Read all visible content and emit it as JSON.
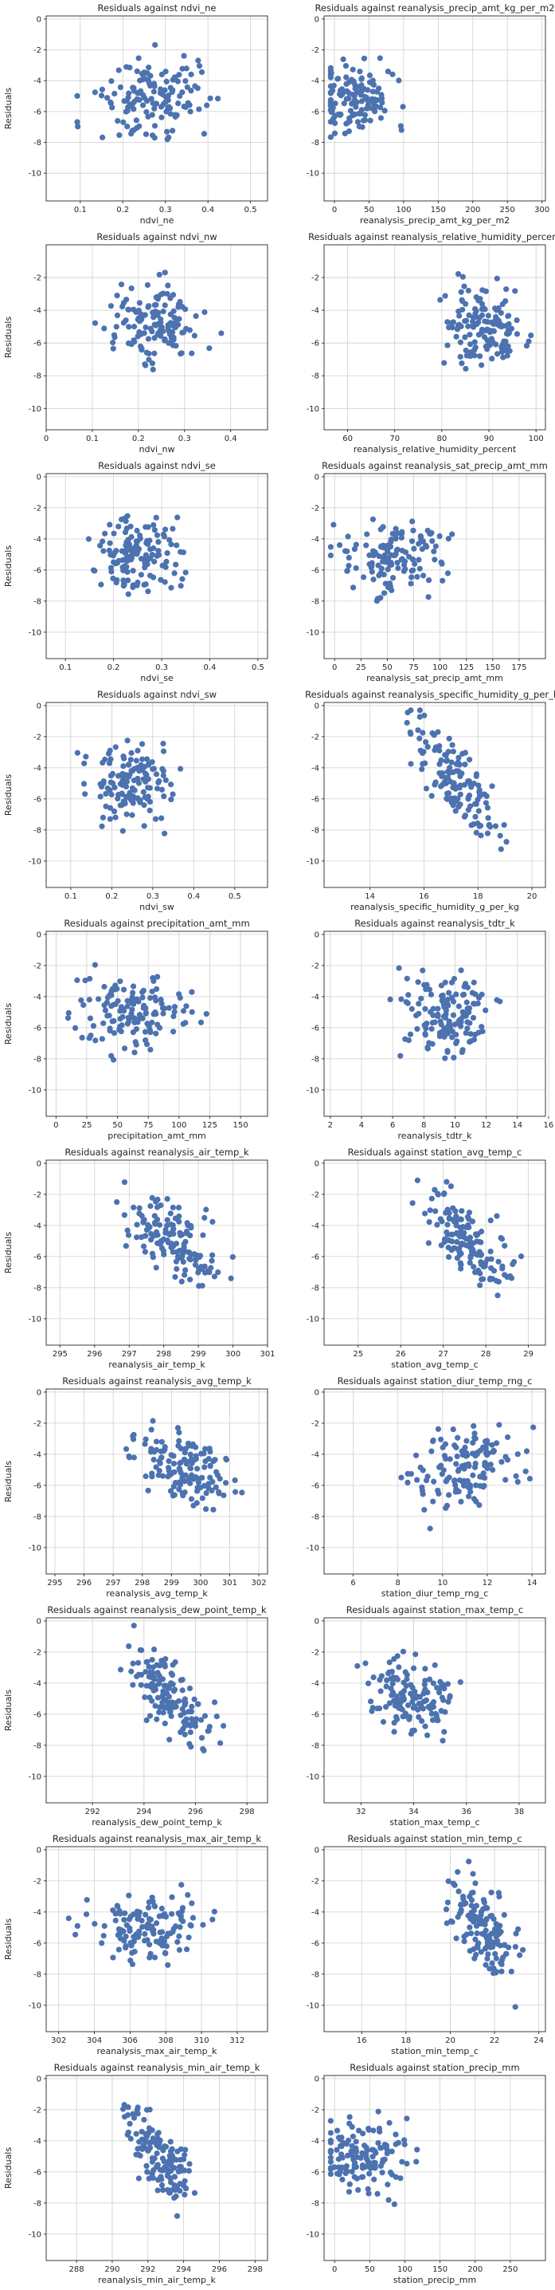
{
  "chart_data": [
    {
      "type": "scatter",
      "title": "Residuals against ndvi_ne",
      "xlabel": "ndvi_ne",
      "ylabel": "Residuals",
      "xlim": [
        0.02,
        0.54
      ],
      "ylim": [
        -11.8,
        0.2
      ],
      "xticks": [
        0.1,
        0.2,
        0.3,
        0.4,
        0.5
      ],
      "yticks": [
        -10,
        -8,
        -6,
        -4,
        -2,
        0
      ],
      "x_center": 0.26,
      "x_spread": 0.1,
      "trend": 0,
      "seed": 1
    },
    {
      "type": "scatter",
      "title": "Residuals against reanalysis_precip_amt_kg_per_m2",
      "xlabel": "reanalysis_precip_amt_kg_per_m2",
      "ylabel": "",
      "xlim": [
        -15,
        305
      ],
      "ylim": [
        -11.8,
        0.2
      ],
      "xticks": [
        0,
        50,
        100,
        150,
        200,
        250,
        300
      ],
      "yticks": [
        -10,
        -8,
        -6,
        -4,
        -2,
        0
      ],
      "x_center": 30,
      "x_spread": 45,
      "trend": 0.02,
      "seed": 2
    },
    {
      "type": "scatter",
      "title": "Residuals against ndvi_nw",
      "xlabel": "ndvi_nw",
      "ylabel": "Residuals",
      "xlim": [
        0.0,
        0.48
      ],
      "ylim": [
        -11.3,
        0.0
      ],
      "xticks": [
        0.0,
        0.1,
        0.2,
        0.3,
        0.4
      ],
      "yticks": [
        -10,
        -8,
        -6,
        -4,
        -2
      ],
      "x_center": 0.23,
      "x_spread": 0.08,
      "trend": 0,
      "seed": 3
    },
    {
      "type": "scatter",
      "title": "Residuals against reanalysis_relative_humidity_percent",
      "xlabel": "reanalysis_relative_humidity_percent",
      "ylabel": "",
      "xlim": [
        55,
        102
      ],
      "ylim": [
        -11.3,
        0.0
      ],
      "xticks": [
        60,
        70,
        80,
        90,
        100
      ],
      "yticks": [
        -10,
        -8,
        -6,
        -4,
        -2
      ],
      "x_center": 89,
      "x_spread": 6,
      "trend": -0.15,
      "seed": 4
    },
    {
      "type": "scatter",
      "title": "Residuals against ndvi_se",
      "xlabel": "ndvi_se",
      "ylabel": "Residuals",
      "xlim": [
        0.06,
        0.52
      ],
      "ylim": [
        -11.7,
        0.2
      ],
      "xticks": [
        0.1,
        0.2,
        0.3,
        0.4,
        0.5
      ],
      "yticks": [
        -10,
        -8,
        -6,
        -4,
        -2,
        0
      ],
      "x_center": 0.25,
      "x_spread": 0.07,
      "trend": 0,
      "seed": 5
    },
    {
      "type": "scatter",
      "title": "Residuals against reanalysis_sat_precip_amt_mm",
      "xlabel": "reanalysis_sat_precip_amt_mm",
      "ylabel": "",
      "xlim": [
        -10,
        200
      ],
      "ylim": [
        -11.7,
        0.2
      ],
      "xticks": [
        0,
        25,
        50,
        75,
        100,
        125,
        150,
        175
      ],
      "yticks": [
        -10,
        -8,
        -6,
        -4,
        -2,
        0
      ],
      "x_center": 55,
      "x_spread": 38,
      "trend": 0,
      "seed": 6
    },
    {
      "type": "scatter",
      "title": "Residuals against ndvi_sw",
      "xlabel": "ndvi_sw",
      "ylabel": "Residuals",
      "xlim": [
        0.04,
        0.58
      ],
      "ylim": [
        -11.7,
        0.2
      ],
      "xticks": [
        0.1,
        0.2,
        0.3,
        0.4,
        0.5
      ],
      "yticks": [
        -10,
        -8,
        -6,
        -4,
        -2,
        0
      ],
      "x_center": 0.25,
      "x_spread": 0.08,
      "trend": 0,
      "seed": 7
    },
    {
      "type": "scatter",
      "title": "Residuals against reanalysis_specific_humidity_g_per_kg",
      "xlabel": "reanalysis_specific_humidity_g_per_kg",
      "ylabel": "",
      "xlim": [
        12.3,
        20.5
      ],
      "ylim": [
        -11.7,
        0.2
      ],
      "xticks": [
        14,
        16,
        18,
        20
      ],
      "yticks": [
        -10,
        -8,
        -6,
        -4,
        -2,
        0
      ],
      "x_center": 17.2,
      "x_spread": 1.2,
      "trend": -1.3,
      "seed": 8
    },
    {
      "type": "scatter",
      "title": "Residuals against precipitation_amt_mm",
      "xlabel": "precipitation_amt_mm",
      "ylabel": "Residuals",
      "xlim": [
        -8,
        172
      ],
      "ylim": [
        -11.7,
        0.2
      ],
      "xticks": [
        0,
        25,
        50,
        75,
        100,
        125,
        150
      ],
      "yticks": [
        -10,
        -8,
        -6,
        -4,
        -2,
        0
      ],
      "x_center": 60,
      "x_spread": 35,
      "trend": 0,
      "seed": 9
    },
    {
      "type": "scatter",
      "title": "Residuals against reanalysis_tdtr_k",
      "xlabel": "reanalysis_tdtr_k",
      "ylabel": "",
      "xlim": [
        1.6,
        15.8
      ],
      "ylim": [
        -11.7,
        0.2
      ],
      "xticks": [
        2,
        4,
        6,
        8,
        10,
        12,
        14,
        16
      ],
      "yticks": [
        -10,
        -8,
        -6,
        -4,
        -2,
        0
      ],
      "x_center": 9.5,
      "x_spread": 2.3,
      "trend": 0.25,
      "seed": 10
    },
    {
      "type": "scatter",
      "title": "Residuals against reanalysis_air_temp_k",
      "xlabel": "reanalysis_air_temp_k",
      "ylabel": "Residuals",
      "xlim": [
        294.6,
        301.0
      ],
      "ylim": [
        -11.7,
        0.2
      ],
      "xticks": [
        295,
        296,
        297,
        298,
        299,
        300,
        301
      ],
      "yticks": [
        -10,
        -8,
        -6,
        -4,
        -2,
        0
      ],
      "x_center": 298.2,
      "x_spread": 1.1,
      "trend": -0.8,
      "seed": 11
    },
    {
      "type": "scatter",
      "title": "Residuals against station_avg_temp_c",
      "xlabel": "station_avg_temp_c",
      "ylabel": "",
      "xlim": [
        24.2,
        29.4
      ],
      "ylim": [
        -11.7,
        0.2
      ],
      "xticks": [
        25,
        26,
        27,
        28,
        29
      ],
      "yticks": [
        -10,
        -8,
        -6,
        -4,
        -2,
        0
      ],
      "x_center": 27.6,
      "x_spread": 0.8,
      "trend": -1.0,
      "seed": 12
    },
    {
      "type": "scatter",
      "title": "Residuals against reanalysis_avg_temp_k",
      "xlabel": "reanalysis_avg_temp_k",
      "ylabel": "Residuals",
      "xlim": [
        294.7,
        302.3
      ],
      "ylim": [
        -11.7,
        0.2
      ],
      "xticks": [
        295,
        296,
        297,
        298,
        299,
        300,
        301,
        302
      ],
      "yticks": [
        -10,
        -8,
        -6,
        -4,
        -2,
        0
      ],
      "x_center": 299.5,
      "x_spread": 1.3,
      "trend": -0.6,
      "seed": 13
    },
    {
      "type": "scatter",
      "title": "Residuals against station_diur_temp_rng_c",
      "xlabel": "station_diur_temp_rng_c",
      "ylabel": "",
      "xlim": [
        4.7,
        14.6
      ],
      "ylim": [
        -11.7,
        0.2
      ],
      "xticks": [
        6,
        8,
        10,
        12,
        14
      ],
      "yticks": [
        -10,
        -8,
        -6,
        -4,
        -2,
        0
      ],
      "x_center": 11.0,
      "x_spread": 1.8,
      "trend": 0.35,
      "seed": 14
    },
    {
      "type": "scatter",
      "title": "Residuals against reanalysis_dew_point_temp_k",
      "xlabel": "reanalysis_dew_point_temp_k",
      "ylabel": "Residuals",
      "xlim": [
        290.2,
        298.8
      ],
      "ylim": [
        -11.7,
        0.2
      ],
      "xticks": [
        292,
        294,
        296,
        298
      ],
      "yticks": [
        -10,
        -8,
        -6,
        -4,
        -2,
        0
      ],
      "x_center": 295.2,
      "x_spread": 1.3,
      "trend": -1.1,
      "seed": 15
    },
    {
      "type": "scatter",
      "title": "Residuals against station_max_temp_c",
      "xlabel": "station_max_temp_c",
      "ylabel": "",
      "xlim": [
        30.6,
        39.0
      ],
      "ylim": [
        -11.7,
        0.2
      ],
      "xticks": [
        32,
        34,
        36,
        38
      ],
      "yticks": [
        -10,
        -8,
        -6,
        -4,
        -2,
        0
      ],
      "x_center": 34.0,
      "x_spread": 1.2,
      "trend": -0.3,
      "seed": 16
    },
    {
      "type": "scatter",
      "title": "Residuals against reanalysis_max_air_temp_k",
      "xlabel": "reanalysis_max_air_temp_k",
      "ylabel": "Residuals",
      "xlim": [
        301.3,
        313.7
      ],
      "ylim": [
        -11.7,
        0.2
      ],
      "xticks": [
        302,
        304,
        306,
        308,
        310,
        312
      ],
      "yticks": [
        -10,
        -8,
        -6,
        -4,
        -2,
        0
      ],
      "x_center": 307.0,
      "x_spread": 2.5,
      "trend": 0.05,
      "seed": 17
    },
    {
      "type": "scatter",
      "title": "Residuals against station_min_temp_c",
      "xlabel": "station_min_temp_c",
      "ylabel": "",
      "xlim": [
        14.3,
        24.3
      ],
      "ylim": [
        -11.7,
        0.2
      ],
      "xticks": [
        16,
        18,
        20,
        22,
        24
      ],
      "yticks": [
        -10,
        -8,
        -6,
        -4,
        -2,
        0
      ],
      "x_center": 21.5,
      "x_spread": 1.2,
      "trend": -1.0,
      "seed": 18
    },
    {
      "type": "scatter",
      "title": "Residuals against reanalysis_min_air_temp_k",
      "xlabel": "reanalysis_min_air_temp_k",
      "ylabel": "Residuals",
      "xlim": [
        286.3,
        298.7
      ],
      "ylim": [
        -11.7,
        0.2
      ],
      "xticks": [
        288,
        290,
        292,
        294,
        296,
        298
      ],
      "yticks": [
        -10,
        -8,
        -6,
        -4,
        -2,
        0
      ],
      "x_center": 292.6,
      "x_spread": 1.4,
      "trend": -0.9,
      "seed": 19
    },
    {
      "type": "scatter",
      "title": "Residuals against station_precip_mm",
      "xlabel": "station_precip_mm",
      "ylabel": "",
      "xlim": [
        -15,
        300
      ],
      "ylim": [
        -11.7,
        0.2
      ],
      "xticks": [
        0,
        50,
        100,
        150,
        200,
        250
      ],
      "yticks": [
        -10,
        -8,
        -6,
        -4,
        -2,
        0
      ],
      "x_center": 40,
      "x_spread": 45,
      "trend": 0,
      "seed": 20
    }
  ]
}
